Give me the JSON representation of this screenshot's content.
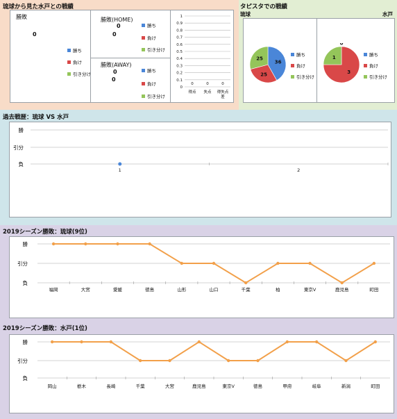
{
  "colors": {
    "peach_bg": "#f8dcc8",
    "green_bg": "#e2eed3",
    "blue_bg": "#cfe5ea",
    "purple_bg": "#d9d2e6",
    "win": "#4a86d8",
    "loss": "#d94848",
    "draw": "#94c55a",
    "line": "#f2a04a"
  },
  "section1": {
    "title": "琉球から見た水戸との戦績",
    "card_total": {
      "title": "勝敗",
      "value": "0"
    },
    "card_home": {
      "title": "勝敗(HOME)",
      "value_a": "0",
      "value_b": "0"
    },
    "card_away": {
      "title": "勝敗(AWAY)",
      "value_a": "0",
      "value_b": "0"
    },
    "legend": {
      "win": "勝ち",
      "loss": "負け",
      "draw": "引き分け"
    }
  },
  "section2": {
    "title": "タピスタでの戦績",
    "left_team": "琉球",
    "right_team": "水戸",
    "legend": {
      "win": "勝ち",
      "loss": "負け",
      "draw": "引き分け"
    }
  },
  "section3": {
    "title": "過去戦歴：琉球 VS 水戸"
  },
  "section4": {
    "title": "2019シーズン勝敗：琉球(9位)"
  },
  "section5": {
    "title": "2019シーズン勝敗：水戸(1位)"
  },
  "chart_data": [
    {
      "type": "bar",
      "categories": [
        "得点",
        "失点",
        "得失点差"
      ],
      "values": [
        0,
        0,
        0
      ],
      "ylim": [
        0,
        1
      ],
      "yticks": [
        "0",
        "0.1",
        "0.2",
        "0.3",
        "0.4",
        "0.5",
        "0.6",
        "0.7",
        "0.8",
        "0.9",
        "1"
      ]
    },
    {
      "type": "pie",
      "title": "琉球",
      "labels": [
        "勝ち",
        "負け",
        "引き分け"
      ],
      "values": [
        36,
        25,
        25
      ]
    },
    {
      "type": "pie",
      "title": "水戸",
      "labels": [
        "勝ち",
        "負け",
        "引き分け"
      ],
      "values": [
        0,
        3,
        1
      ]
    },
    {
      "type": "scatter",
      "x": [
        1
      ],
      "y": [
        "負"
      ],
      "xticks": [
        "1",
        "2"
      ],
      "ycategories": [
        "勝",
        "引分",
        "負"
      ]
    },
    {
      "type": "line",
      "categories": [
        "福岡",
        "大宮",
        "愛媛",
        "徳島",
        "山形",
        "山口",
        "千葉",
        "柏",
        "東京V",
        "鹿児島",
        "町田"
      ],
      "values": [
        "勝",
        "勝",
        "勝",
        "勝",
        "引分",
        "引分",
        "負",
        "引分",
        "引分",
        "負",
        "引分"
      ],
      "ycategories": [
        "勝",
        "引分",
        "負"
      ]
    },
    {
      "type": "line",
      "categories": [
        "岡山",
        "栃木",
        "長崎",
        "千葉",
        "大宮",
        "鹿児島",
        "東京V",
        "徳島",
        "甲府",
        "岐阜",
        "新潟",
        "町田"
      ],
      "values": [
        "勝",
        "勝",
        "勝",
        "引分",
        "引分",
        "勝",
        "引分",
        "引分",
        "勝",
        "勝",
        "引分",
        "勝"
      ],
      "ycategories": [
        "勝",
        "引分",
        "負"
      ]
    }
  ]
}
